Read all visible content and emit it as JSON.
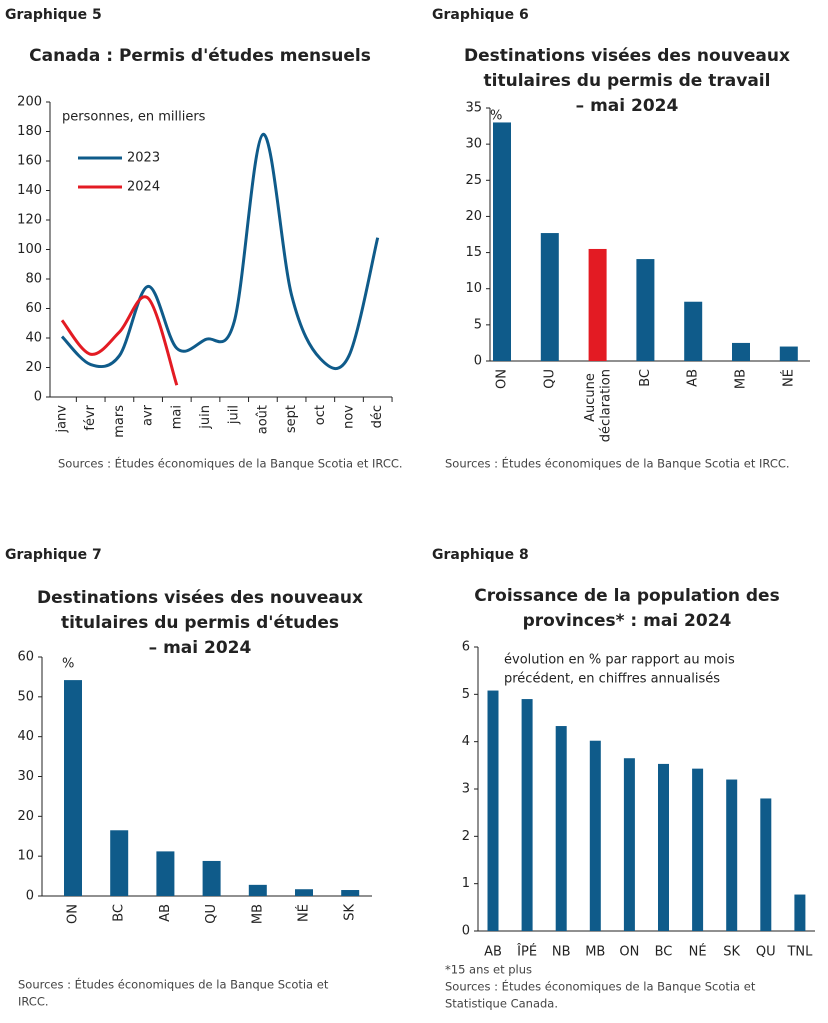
{
  "chart_data": [
    {
      "type": "line",
      "label": "Graphique 5",
      "title": [
        "Canada : Permis d'études mensuels"
      ],
      "annotation": [
        "personnes, en milliers"
      ],
      "categories": [
        "janv",
        "févr",
        "mars",
        "avr",
        "mai",
        "juin",
        "juil",
        "août",
        "sept",
        "oct",
        "nov",
        "déc"
      ],
      "series": [
        {
          "name": "2023",
          "color": "#0f5b8a",
          "values": [
            41,
            22,
            28,
            75,
            33,
            39,
            51,
            178,
            69,
            26,
            28,
            108
          ]
        },
        {
          "name": "2024",
          "color": "#e31b23",
          "values": [
            52,
            29,
            44,
            67,
            8,
            null,
            null,
            null,
            null,
            null,
            null,
            null
          ]
        }
      ],
      "ylim": [
        0,
        200
      ],
      "yticks": [
        0,
        20,
        40,
        60,
        80,
        100,
        120,
        140,
        160,
        180,
        200
      ],
      "sources": [
        "Sources : Études économiques de la Banque Scotia et IRCC."
      ]
    },
    {
      "type": "bar",
      "label": "Graphique 6",
      "title": [
        "Destinations visées des nouveaux",
        "titulaires du permis de travail",
        "– mai 2024"
      ],
      "annotation": [
        "%"
      ],
      "categories": [
        "ON",
        "QU",
        "Aucune déclaration",
        "BC",
        "AB",
        "MB",
        "NÉ"
      ],
      "values": [
        33,
        17.7,
        15.5,
        14.1,
        8.2,
        2.5,
        2
      ],
      "colors": [
        "#0f5b8a",
        "#0f5b8a",
        "#e31b23",
        "#0f5b8a",
        "#0f5b8a",
        "#0f5b8a",
        "#0f5b8a"
      ],
      "ylim": [
        0,
        35
      ],
      "yticks": [
        0,
        5,
        10,
        15,
        20,
        25,
        30,
        35
      ],
      "sources": [
        "Sources : Études économiques de la Banque Scotia et IRCC."
      ]
    },
    {
      "type": "bar",
      "label": "Graphique 7",
      "title": [
        "Destinations visées des nouveaux",
        "titulaires du permis d'études",
        "– mai 2024"
      ],
      "annotation": [
        "%"
      ],
      "categories": [
        "ON",
        "BC",
        "AB",
        "QU",
        "MB",
        "NÉ",
        "SK"
      ],
      "values": [
        54.2,
        16.5,
        11.2,
        8.8,
        2.8,
        1.7,
        1.5
      ],
      "color": "#0f5b8a",
      "ylim": [
        0,
        60
      ],
      "yticks": [
        0,
        10,
        20,
        30,
        40,
        50,
        60
      ],
      "sources": [
        "Sources : Études économiques de la Banque Scotia et",
        "IRCC."
      ]
    },
    {
      "type": "bar",
      "label": "Graphique 8",
      "title": [
        "Croissance de la population des",
        "provinces* : mai 2024"
      ],
      "annotation": [
        "évolution en % par rapport au mois",
        "précédent, en chiffres annualisés"
      ],
      "categories": [
        "AB",
        "ÎPÉ",
        "NB",
        "MB",
        "ON",
        "BC",
        "NÉ",
        "SK",
        "QU",
        "TNL"
      ],
      "values": [
        5.08,
        4.9,
        4.33,
        4.02,
        3.65,
        3.53,
        3.43,
        3.2,
        2.8,
        0.77
      ],
      "color": "#0f5b8a",
      "ylim": [
        0,
        6
      ],
      "yticks": [
        0,
        1,
        2,
        3,
        4,
        5,
        6
      ],
      "footnote": "*15 ans et plus",
      "sources": [
        "Sources : Études économiques de la Banque Scotia et",
        "Statistique Canada."
      ]
    }
  ]
}
